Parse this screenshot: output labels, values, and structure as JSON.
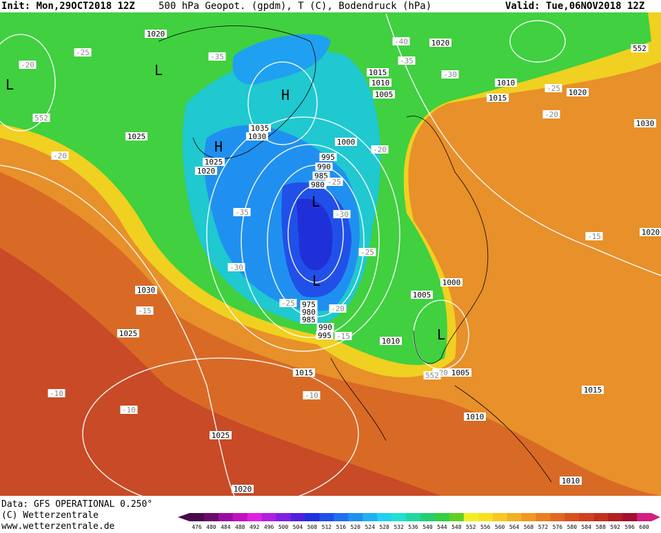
{
  "header": {
    "init": "Init: Mon,29OCT2018 12Z",
    "title": "500 hPa Geopot. (gpdm), T (C), Bodendruck (hPa)",
    "valid": "Valid: Tue,06NOV2018 12Z"
  },
  "footer": {
    "data": "Data: GFS OPERATIONAL 0.250°",
    "copyright": "(C) Wetterzentrale",
    "url": "www.wetterzentrale.de"
  },
  "legend": {
    "ticks": [
      476,
      480,
      484,
      488,
      492,
      496,
      500,
      504,
      508,
      512,
      516,
      520,
      524,
      528,
      532,
      536,
      540,
      544,
      548,
      552,
      556,
      560,
      564,
      568,
      572,
      576,
      580,
      584,
      588,
      592,
      596,
      600
    ],
    "colors": [
      "#4a0a4a",
      "#6a0a6a",
      "#9a0aa0",
      "#c010c0",
      "#e020e0",
      "#b020e0",
      "#8020e0",
      "#5020e0",
      "#2030e0",
      "#2050e8",
      "#2070f0",
      "#2090f0",
      "#20b0f0",
      "#20d0f0",
      "#20e0d0",
      "#20d8a0",
      "#20d070",
      "#30d040",
      "#60d020",
      "#f0f020",
      "#f8e020",
      "#f8c820",
      "#f0b020",
      "#f09820",
      "#e88020",
      "#e06820",
      "#d85020",
      "#d04020",
      "#c03020",
      "#b02020",
      "#a01030",
      "#d02080"
    ]
  },
  "map_labels": {
    "isobars": [
      "1020",
      "1020",
      "552",
      "1015",
      "1010",
      "1005",
      "1010",
      "1015",
      "1020",
      "1030",
      "1035",
      "1030",
      "1025",
      "1000",
      "1025",
      "1020",
      "995",
      "990",
      "985",
      "980",
      "1000",
      "1005",
      "975",
      "980",
      "985",
      "990",
      "995",
      "1010",
      "1030",
      "1025",
      "1015",
      "1005",
      "1010",
      "1015",
      "1025",
      "1010",
      "1020",
      "1020"
    ],
    "temperatures": [
      "-25",
      "-20",
      "-35",
      "-35",
      "-40",
      "-30",
      "-25",
      "-20",
      "-20",
      "-20",
      "-25",
      "-35",
      "-30",
      "-25",
      "-30",
      "-25",
      "-20",
      "-15",
      "-15",
      "-15",
      "-10",
      "-10",
      "-10",
      "-20",
      "552",
      "552"
    ],
    "pressure_centers": [
      "H",
      "H",
      "L",
      "L",
      "L",
      "L",
      "L"
    ]
  }
}
